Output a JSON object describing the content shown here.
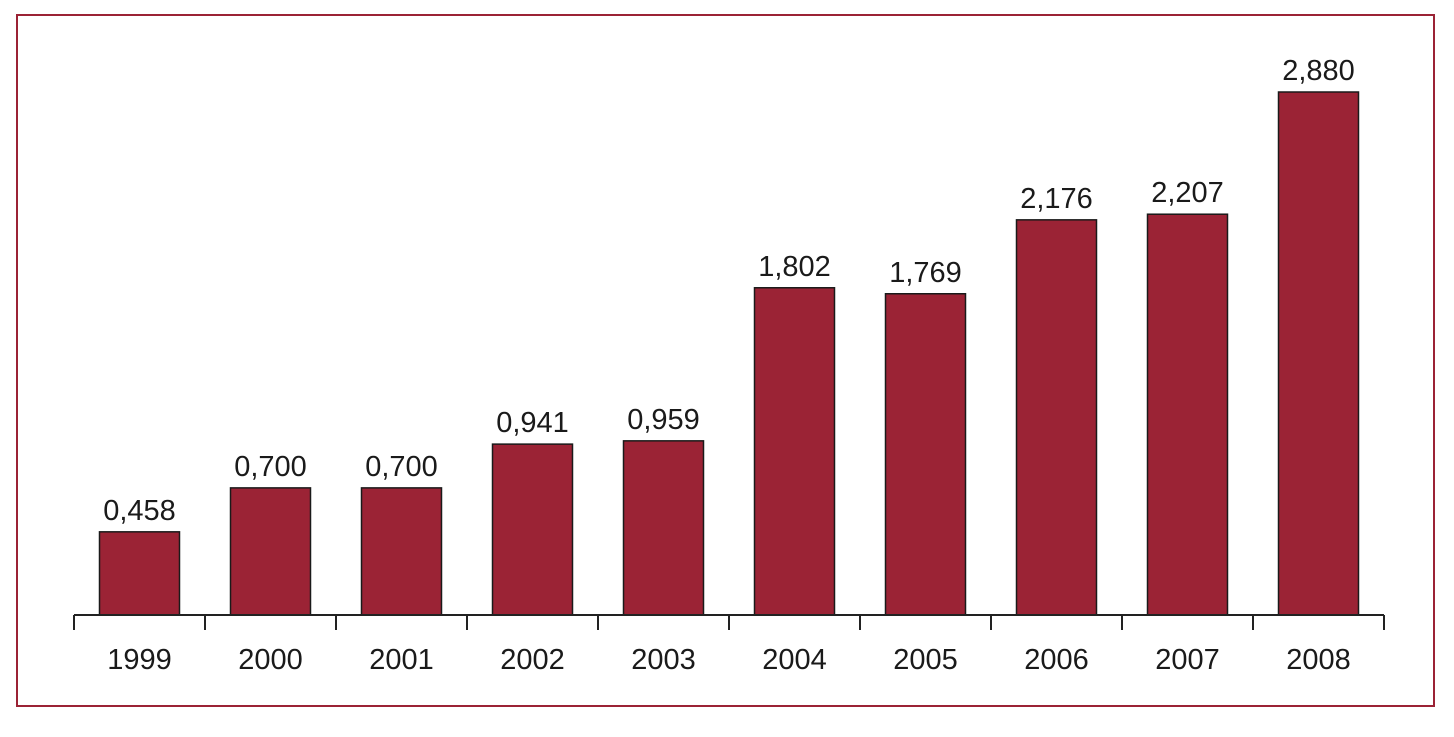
{
  "colors": {
    "bar": "#9b2335",
    "frame": "#9b2335",
    "axis": "#222222",
    "text": "#1a1a1a"
  },
  "chart_data": {
    "type": "bar",
    "title": "",
    "xlabel": "",
    "ylabel": "",
    "categories": [
      "1999",
      "2000",
      "2001",
      "2002",
      "2003",
      "2004",
      "2005",
      "2006",
      "2007",
      "2008"
    ],
    "values": [
      0.458,
      0.7,
      0.7,
      0.941,
      0.959,
      1.802,
      1.769,
      2.176,
      2.207,
      2.88
    ],
    "value_labels": [
      "0,458",
      "0,700",
      "0,700",
      "0,941",
      "0,959",
      "1,802",
      "1,769",
      "2,176",
      "2,207",
      "2,880"
    ],
    "ylim": [
      0,
      2.88
    ],
    "grid": false,
    "legend": "none"
  }
}
